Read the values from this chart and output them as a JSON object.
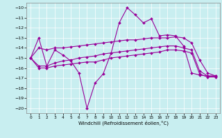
{
  "xlabel": "Windchill (Refroidissement éolien,°C)",
  "bg_color": "#c8eef0",
  "line_color": "#990099",
  "xlim": [
    -0.5,
    23.5
  ],
  "ylim": [
    -20.5,
    -9.5
  ],
  "yticks": [
    -20,
    -19,
    -18,
    -17,
    -16,
    -15,
    -14,
    -13,
    -12,
    -11,
    -10
  ],
  "xticks": [
    0,
    1,
    2,
    3,
    4,
    5,
    6,
    7,
    8,
    9,
    10,
    11,
    12,
    13,
    14,
    15,
    16,
    17,
    18,
    19,
    20,
    21,
    22,
    23
  ],
  "series": [
    {
      "x": [
        0,
        1,
        2,
        3,
        4,
        5,
        6,
        7,
        8,
        9,
        10,
        11,
        12,
        13,
        14,
        15,
        16,
        17,
        18,
        19,
        20,
        21,
        22,
        23
      ],
      "y": [
        -15.0,
        -13.0,
        -15.8,
        -14.2,
        -14.7,
        -15.3,
        -16.5,
        -20.0,
        -17.5,
        -16.6,
        -14.5,
        -11.5,
        -10.0,
        -10.7,
        -11.5,
        -11.1,
        -12.8,
        -12.7,
        -12.8,
        -13.8,
        -16.5,
        -16.7,
        -16.8,
        -16.8
      ]
    },
    {
      "x": [
        0,
        1,
        2,
        3,
        4,
        5,
        6,
        7,
        8,
        9,
        10,
        11,
        12,
        13,
        14,
        15,
        16,
        17,
        18,
        19,
        20,
        21,
        22,
        23
      ],
      "y": [
        -15.0,
        -14.0,
        -14.2,
        -14.0,
        -14.0,
        -13.9,
        -13.8,
        -13.7,
        -13.6,
        -13.5,
        -13.4,
        -13.3,
        -13.2,
        -13.2,
        -13.1,
        -13.0,
        -13.0,
        -13.0,
        -12.9,
        -13.0,
        -13.5,
        -15.2,
        -16.5,
        -16.8
      ]
    },
    {
      "x": [
        0,
        1,
        2,
        3,
        4,
        5,
        6,
        7,
        8,
        9,
        10,
        11,
        12,
        13,
        14,
        15,
        16,
        17,
        18,
        19,
        20,
        21,
        22,
        23
      ],
      "y": [
        -15.0,
        -15.8,
        -15.8,
        -15.5,
        -15.3,
        -15.2,
        -15.0,
        -14.9,
        -14.8,
        -14.6,
        -14.5,
        -14.4,
        -14.3,
        -14.2,
        -14.1,
        -14.0,
        -13.9,
        -13.8,
        -13.8,
        -14.0,
        -14.2,
        -16.3,
        -16.8,
        -16.8
      ]
    },
    {
      "x": [
        0,
        1,
        2,
        3,
        4,
        5,
        6,
        7,
        8,
        9,
        10,
        11,
        12,
        13,
        14,
        15,
        16,
        17,
        18,
        19,
        20,
        21,
        22,
        23
      ],
      "y": [
        -15.0,
        -16.0,
        -16.0,
        -15.8,
        -15.7,
        -15.6,
        -15.5,
        -15.4,
        -15.4,
        -15.2,
        -15.0,
        -14.9,
        -14.8,
        -14.7,
        -14.6,
        -14.5,
        -14.4,
        -14.2,
        -14.2,
        -14.3,
        -14.5,
        -16.6,
        -16.9,
        -16.9
      ]
    }
  ]
}
